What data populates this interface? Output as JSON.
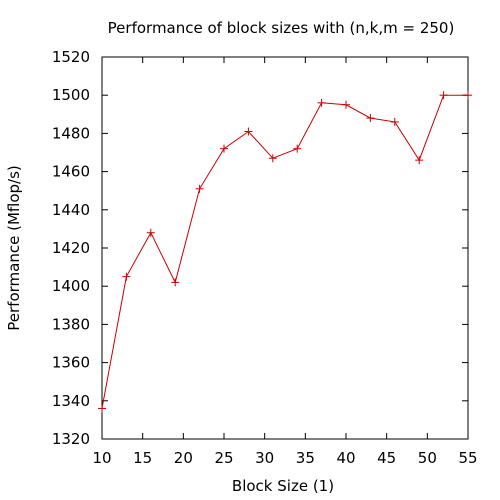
{
  "chart_data": {
    "type": "line",
    "title": "Performance of block sizes with (n,k,m = 250)",
    "xlabel": "Block Size (1)",
    "ylabel": "Performance (Mflop/s)",
    "xlim": [
      10,
      55
    ],
    "ylim": [
      1320,
      1520
    ],
    "xticks": [
      10,
      15,
      20,
      25,
      30,
      35,
      40,
      45,
      50,
      55
    ],
    "yticks": [
      1320,
      1340,
      1360,
      1380,
      1400,
      1420,
      1440,
      1460,
      1480,
      1500,
      1520
    ],
    "grid": false,
    "legend": "none",
    "series": [
      {
        "color": "#cc0000",
        "marker": "plus",
        "x": [
          10,
          13,
          16,
          19,
          22,
          25,
          28,
          31,
          34,
          37,
          40,
          43,
          46,
          49,
          52,
          55
        ],
        "y": [
          1336,
          1405,
          1428,
          1402,
          1451,
          1472,
          1481,
          1467,
          1472,
          1496,
          1495,
          1488,
          1486,
          1466,
          1500,
          1500
        ]
      }
    ]
  }
}
